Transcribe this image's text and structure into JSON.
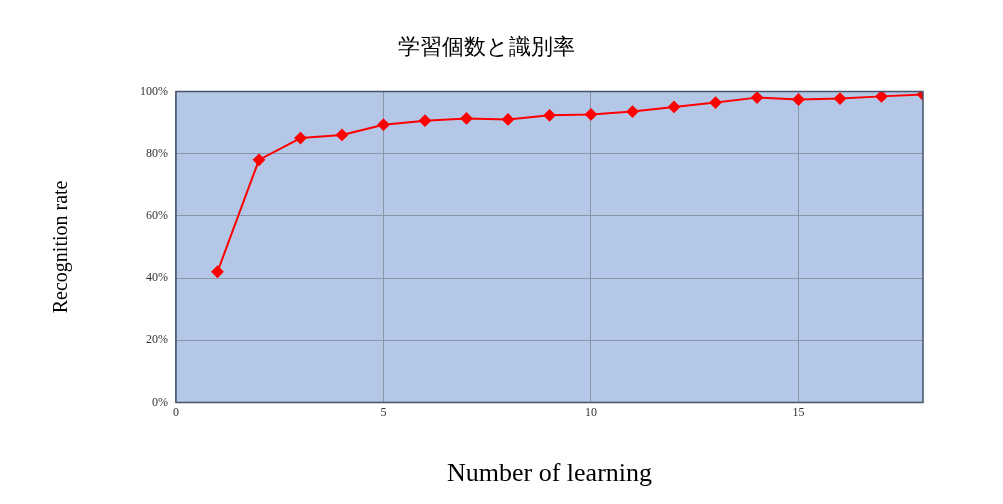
{
  "chart_data": {
    "type": "line",
    "title": "学習個数と識別率",
    "xlabel": "Number of learning",
    "ylabel": "Recognition rate",
    "x": [
      1,
      2,
      3,
      4,
      5,
      6,
      7,
      8,
      9,
      10,
      11,
      12,
      13,
      14,
      15,
      16,
      17,
      18
    ],
    "series": [
      {
        "color": "#ff0000",
        "values": [
          42,
          78,
          85,
          86,
          89.3,
          90.6,
          91.3,
          91,
          92.3,
          92.6,
          93.5,
          95,
          96.4,
          98,
          97.4,
          97.7,
          98.4,
          99
        ]
      }
    ],
    "xlim": [
      0,
      18
    ],
    "xticks": [
      0,
      5,
      10,
      15
    ],
    "ylim": [
      0,
      100
    ],
    "yticks": [
      {
        "value": 0,
        "label": "0%"
      },
      {
        "value": 20,
        "label": "20%"
      },
      {
        "value": 40,
        "label": "40%"
      },
      {
        "value": 60,
        "label": "60%"
      },
      {
        "value": 80,
        "label": "80%"
      },
      {
        "value": 100,
        "label": "100%"
      }
    ],
    "grid": true,
    "legend": false,
    "marker": "diamond",
    "line_style": "solid"
  }
}
